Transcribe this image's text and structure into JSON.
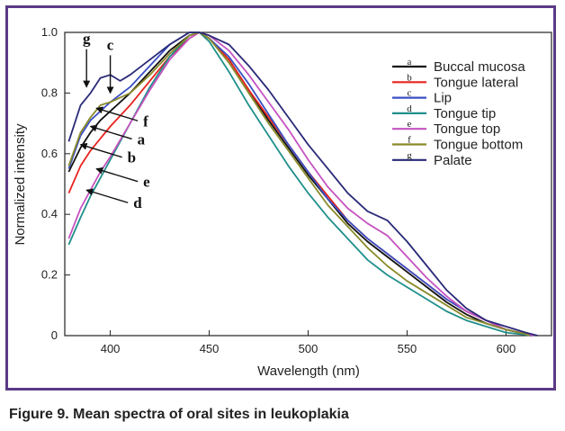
{
  "caption": "Figure 9. Mean spectra of oral sites in leukoplakia",
  "chart_data": {
    "type": "line",
    "title": "",
    "xlabel": "Wavelength (nm)",
    "ylabel": "Normalized intensity",
    "xlim": [
      377,
      623
    ],
    "ylim": [
      0,
      1.0
    ],
    "xticks": [
      400,
      450,
      500,
      550,
      600
    ],
    "yticks": [
      0,
      0.2,
      0.4,
      0.6,
      0.8,
      1.0
    ],
    "ytick_labels": [
      "0",
      "0.2",
      "0.4",
      "0.6",
      "0.8",
      "1.0"
    ],
    "legend_position": "top-right",
    "series": [
      {
        "key": "a",
        "name": "Buccal mucosa",
        "color": "#111111",
        "x": [
          379,
          385,
          390,
          395,
          400,
          410,
          420,
          430,
          440,
          445,
          450,
          460,
          470,
          480,
          490,
          500,
          510,
          520,
          530,
          540,
          550,
          560,
          570,
          580,
          590,
          600,
          610,
          613
        ],
        "y": [
          0.54,
          0.62,
          0.67,
          0.71,
          0.74,
          0.8,
          0.87,
          0.94,
          0.99,
          1.0,
          0.98,
          0.91,
          0.81,
          0.71,
          0.62,
          0.53,
          0.45,
          0.37,
          0.31,
          0.26,
          0.21,
          0.16,
          0.11,
          0.07,
          0.04,
          0.02,
          0.005,
          0.0
        ]
      },
      {
        "key": "b",
        "name": "Tongue lateral",
        "color": "#e8231e",
        "x": [
          379,
          385,
          390,
          395,
          400,
          410,
          420,
          430,
          440,
          445,
          450,
          460,
          470,
          480,
          490,
          500,
          510,
          520,
          530,
          540,
          550,
          560,
          570,
          580,
          590,
          600,
          610,
          613
        ],
        "y": [
          0.47,
          0.56,
          0.61,
          0.65,
          0.69,
          0.76,
          0.84,
          0.92,
          0.98,
          1.0,
          0.98,
          0.91,
          0.81,
          0.72,
          0.63,
          0.54,
          0.46,
          0.38,
          0.32,
          0.27,
          0.22,
          0.17,
          0.12,
          0.08,
          0.05,
          0.02,
          0.005,
          0.0
        ]
      },
      {
        "key": "c",
        "name": "Lip",
        "color": "#3a4fc4",
        "x": [
          379,
          385,
          390,
          395,
          400,
          410,
          420,
          430,
          440,
          445,
          450,
          460,
          470,
          480,
          490,
          500,
          510,
          520,
          530,
          540,
          550,
          560,
          570,
          580,
          590,
          600,
          610,
          613
        ],
        "y": [
          0.55,
          0.66,
          0.71,
          0.74,
          0.77,
          0.82,
          0.89,
          0.96,
          1.0,
          1.0,
          0.98,
          0.92,
          0.83,
          0.73,
          0.63,
          0.54,
          0.45,
          0.38,
          0.32,
          0.27,
          0.22,
          0.17,
          0.12,
          0.08,
          0.05,
          0.02,
          0.005,
          0.0
        ]
      },
      {
        "key": "d",
        "name": "Tongue tip",
        "color": "#1f8f8a",
        "x": [
          379,
          385,
          390,
          395,
          400,
          410,
          420,
          430,
          440,
          445,
          450,
          460,
          470,
          480,
          490,
          500,
          510,
          520,
          530,
          540,
          550,
          560,
          570,
          580,
          590,
          600,
          610,
          612
        ],
        "y": [
          0.3,
          0.39,
          0.46,
          0.52,
          0.58,
          0.7,
          0.82,
          0.92,
          0.99,
          1.0,
          0.97,
          0.87,
          0.76,
          0.66,
          0.56,
          0.47,
          0.39,
          0.32,
          0.25,
          0.2,
          0.16,
          0.12,
          0.08,
          0.05,
          0.03,
          0.01,
          0.003,
          0.0
        ]
      },
      {
        "key": "e",
        "name": "Tongue top",
        "color": "#c653c0",
        "x": [
          379,
          385,
          390,
          395,
          400,
          410,
          420,
          430,
          440,
          445,
          450,
          460,
          470,
          480,
          490,
          500,
          510,
          520,
          530,
          540,
          550,
          560,
          570,
          580,
          590,
          600,
          610,
          614
        ],
        "y": [
          0.32,
          0.42,
          0.48,
          0.54,
          0.59,
          0.7,
          0.81,
          0.91,
          0.98,
          1.0,
          0.99,
          0.94,
          0.86,
          0.77,
          0.68,
          0.58,
          0.49,
          0.42,
          0.37,
          0.33,
          0.26,
          0.19,
          0.13,
          0.08,
          0.05,
          0.02,
          0.006,
          0.0
        ]
      },
      {
        "key": "f",
        "name": "Tongue bottom",
        "color": "#8a8a2a",
        "x": [
          379,
          385,
          390,
          395,
          400,
          410,
          420,
          430,
          440,
          445,
          450,
          460,
          470,
          480,
          490,
          500,
          510,
          520,
          530,
          540,
          550,
          560,
          570,
          580,
          590,
          600,
          610,
          612
        ],
        "y": [
          0.56,
          0.67,
          0.72,
          0.76,
          0.77,
          0.8,
          0.86,
          0.93,
          0.99,
          1.0,
          0.98,
          0.9,
          0.8,
          0.7,
          0.61,
          0.52,
          0.43,
          0.36,
          0.29,
          0.23,
          0.18,
          0.14,
          0.1,
          0.06,
          0.04,
          0.02,
          0.005,
          0.0
        ]
      },
      {
        "key": "g",
        "name": "Palate",
        "color": "#2a2a78",
        "x": [
          379,
          385,
          390,
          395,
          400,
          405,
          410,
          420,
          430,
          440,
          445,
          450,
          460,
          470,
          480,
          490,
          500,
          510,
          520,
          530,
          540,
          550,
          560,
          570,
          580,
          590,
          600,
          610,
          616
        ],
        "y": [
          0.64,
          0.76,
          0.8,
          0.85,
          0.86,
          0.84,
          0.86,
          0.91,
          0.96,
          1.0,
          1.0,
          0.99,
          0.96,
          0.89,
          0.81,
          0.72,
          0.63,
          0.55,
          0.47,
          0.41,
          0.38,
          0.31,
          0.23,
          0.15,
          0.09,
          0.05,
          0.03,
          0.01,
          0.0
        ]
      }
    ],
    "annotations": [
      {
        "label": "g",
        "style": "vertical",
        "x": 388,
        "y": 0.82
      },
      {
        "label": "c",
        "style": "vertical",
        "x": 400,
        "y": 0.8
      },
      {
        "label": "f",
        "style": "left-arrow",
        "x": 393,
        "y": 0.75
      },
      {
        "label": "a",
        "style": "left-arrow",
        "x": 390,
        "y": 0.69
      },
      {
        "label": "b",
        "style": "left-arrow",
        "x": 385,
        "y": 0.63
      },
      {
        "label": "e",
        "style": "left-arrow",
        "x": 393,
        "y": 0.55
      },
      {
        "label": "d",
        "style": "left-arrow",
        "x": 388,
        "y": 0.48
      }
    ]
  }
}
